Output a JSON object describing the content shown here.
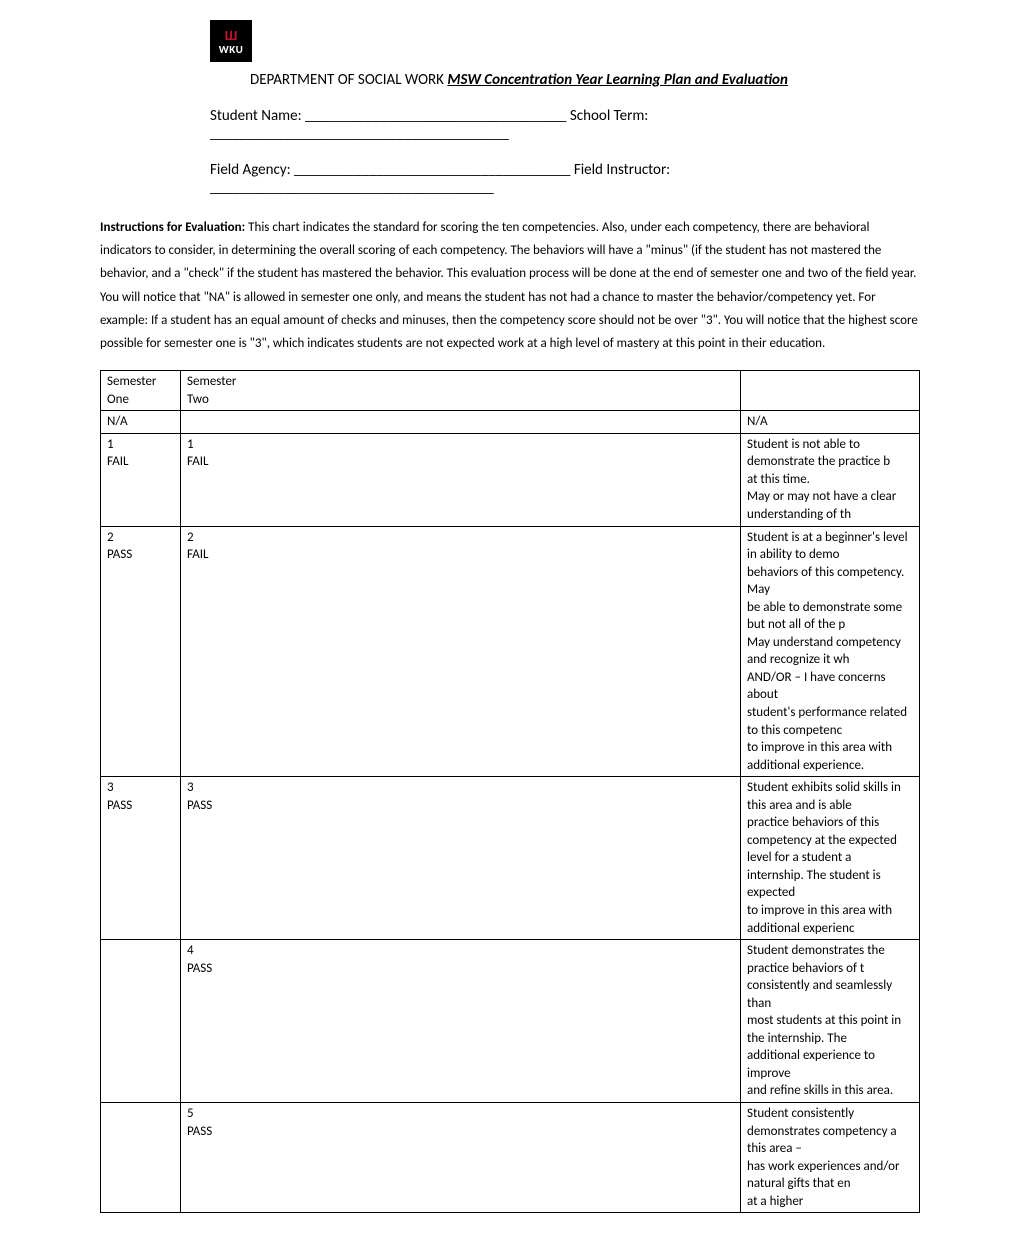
{
  "header": {
    "logo_top": "Ш",
    "logo_text": "WKU",
    "department": "DEPARTMENT OF SOCIAL WORK ",
    "doc_title": "MSW Concentration Year Learning Plan and Evaluation"
  },
  "fields": {
    "row1": "Student Name: ___________________________________ School Term: ________________________________________",
    "row2": "Field Agency: _____________________________________ Field Instructor: ______________________________________"
  },
  "instructions": {
    "label": "Instructions for Evaluation: ",
    "text": "This chart indicates the standard for scoring the ten competencies. Also, under each competency, there are behavioral indicators to consider, in determining the overall scoring of each competency. The behaviors will have a \"minus\" (if the student has not mastered the behavior, and a \"check\" if the student has mastered the behavior. This evaluation process will be done at the end of semester one and two of the field year. You will notice that \"NA\" is allowed in semester one only, and means the student has not had a chance to master the behavior/competency yet. For example: If a student has an equal amount of checks and minuses, then the competency score should not be over \"3\". You will notice that the highest score possible for semester one is \"3\", which indicates students are not expected work at a high level of mastery at this point in their education."
  },
  "table": {
    "rows": [
      {
        "c1": "Semester\nOne",
        "c2": "Semester\nTwo",
        "c3": ""
      },
      {
        "c1": "N/A",
        "c2": "",
        "c3": "N/A"
      },
      {
        "c1": "1\n FAIL",
        "c2": "1\nFAIL",
        "c3": "Student is not able to demonstrate the practice b\nat this time.\n May or may not have a clear understanding of th"
      },
      {
        "c1": "2\nPASS",
        "c2": "2\nFAIL",
        "c3": "Student is at a beginner's level in ability to demo\nbehaviors of this competency.  May\nbe able to demonstrate some but not all of the p\nMay understand competency and recognize it wh\nAND/OR – I have concerns about\nstudent's performance related to this competenc\nto improve in this area with\nadditional experience."
      },
      {
        "c1": "3\nPASS",
        "c2": "3\nPASS",
        "c3": "Student exhibits solid skills in this area and is able\npractice behaviors  of this\ncompetency at the expected level for a student a\ninternship.  The student is expected\nto improve in this area with additional experienc"
      },
      {
        "c1": "",
        "c2": "4\nPASS",
        "c3": "Student demonstrates the practice behaviors of t\nconsistently and seamlessly than\nmost students at this point in the internship. The\nadditional experience to improve\nand refine skills in this area."
      },
      {
        "c1": "",
        "c2": "5\nPASS",
        "c3": "Student consistently demonstrates competency a\nthis area –\nhas work experiences and/or natural gifts that en\nat a higher"
      }
    ]
  }
}
